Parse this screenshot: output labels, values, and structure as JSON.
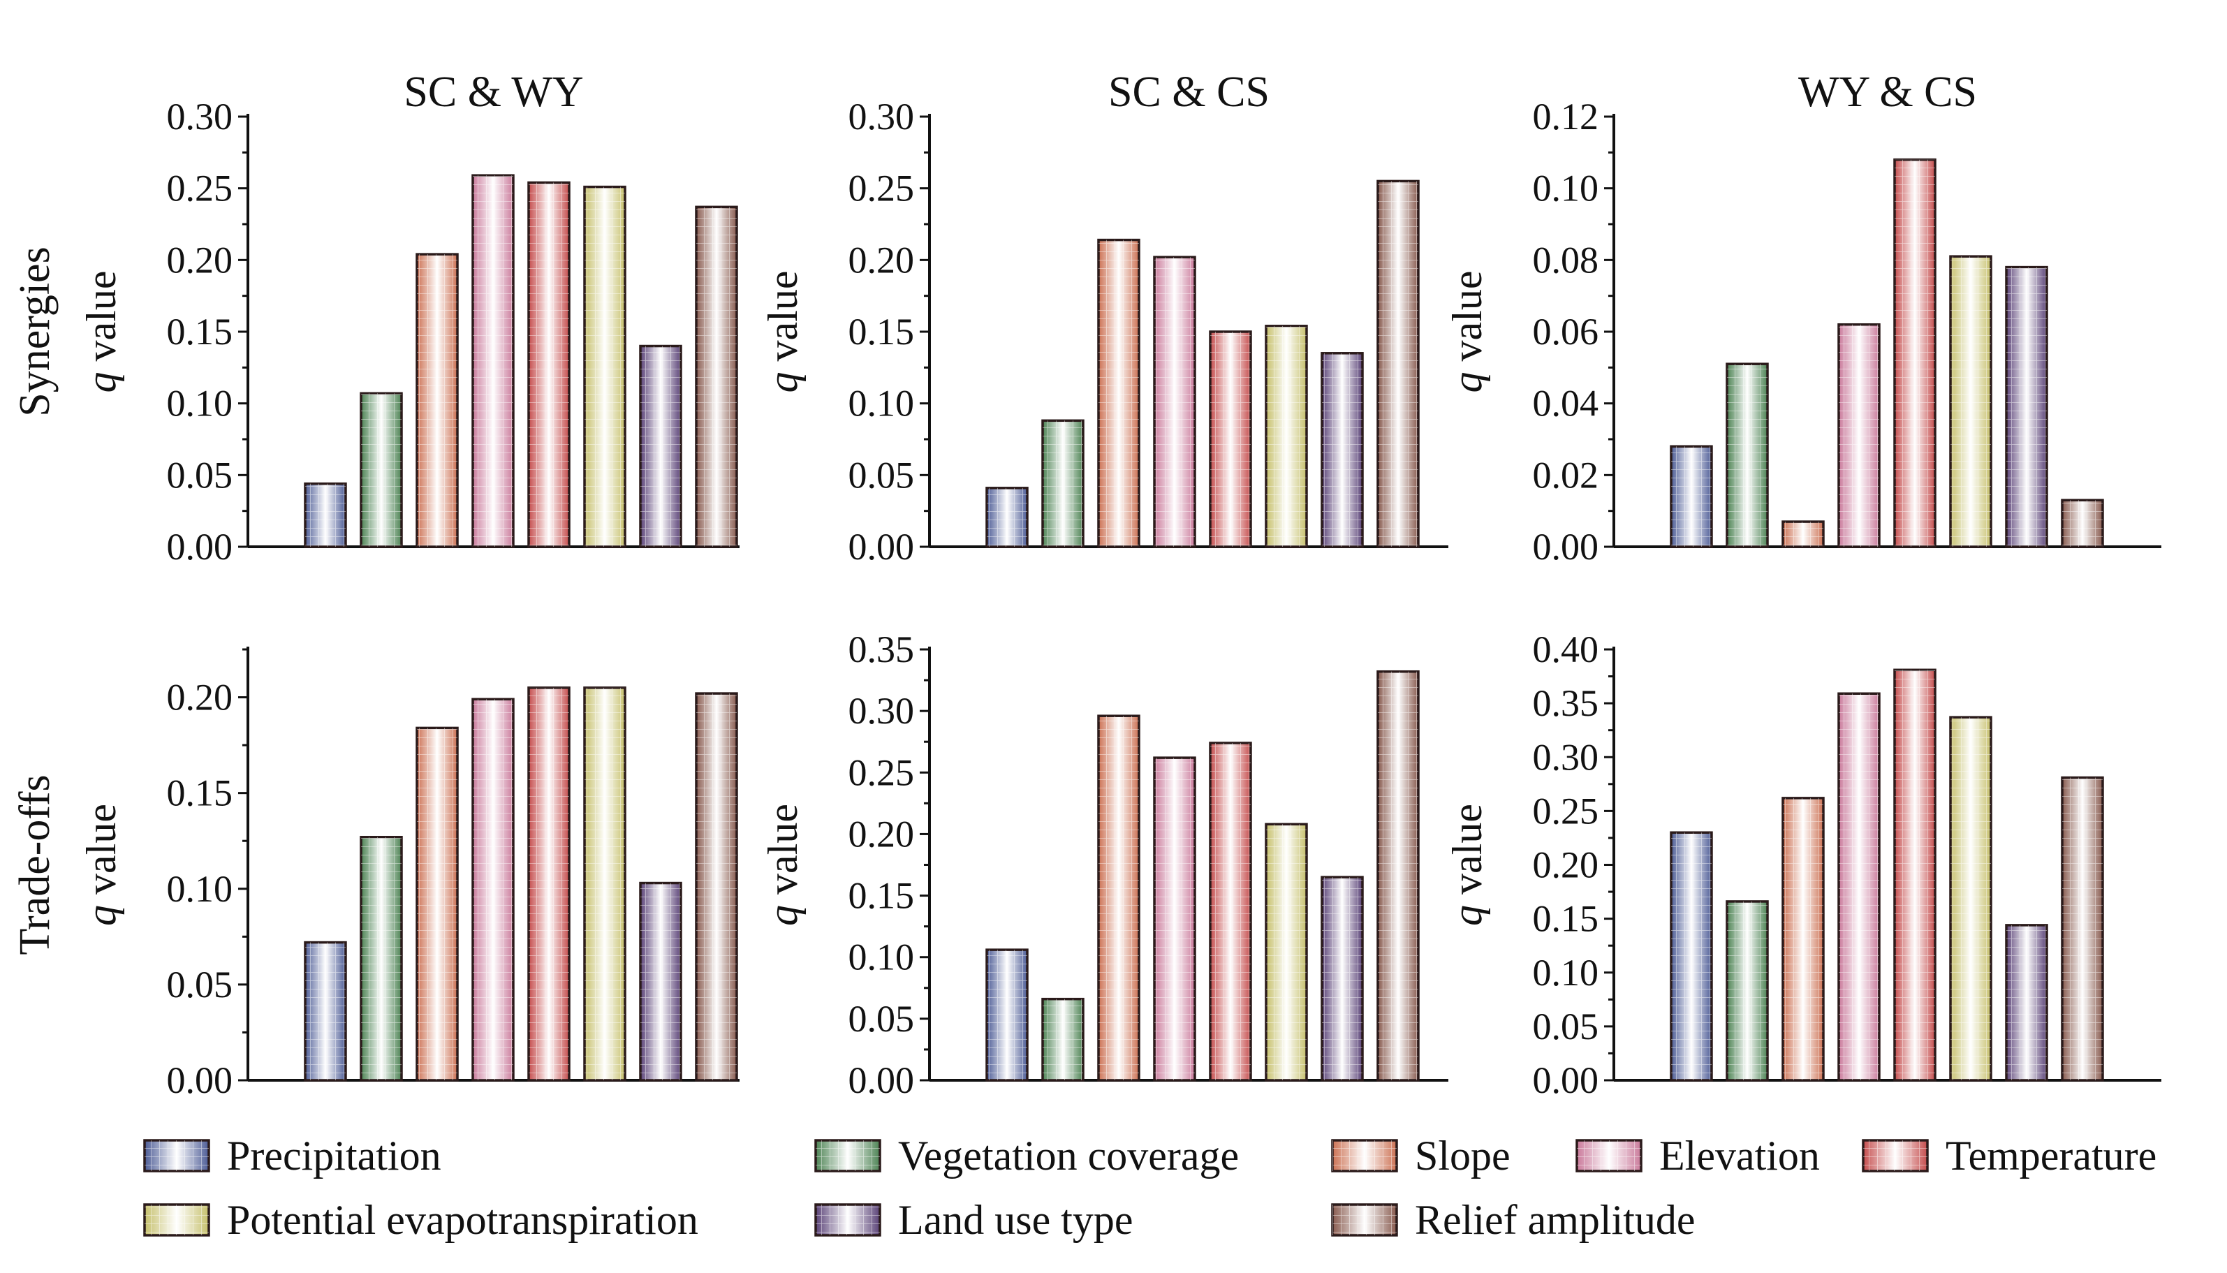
{
  "chart_data": {
    "type": "bar",
    "categories": [
      "Precipitation",
      "Vegetation coverage",
      "Slope",
      "Elevation",
      "Temperature",
      "Potential evapotranspiration",
      "Land use type",
      "Relief amplitude"
    ],
    "colors": [
      "#5b6cb0",
      "#5a9a63",
      "#f08562",
      "#ee8fb6",
      "#e85a5a",
      "#e9e27f",
      "#6a4e8c",
      "#a06a5c"
    ],
    "row_labels": [
      "Synergies",
      "Trade-offs"
    ],
    "ylabel_italic": "q",
    "ylabel_rest": " value",
    "legend": {
      "position": "bottom",
      "entries": [
        "Precipitation",
        "Vegetation coverage",
        "Slope",
        "Elevation",
        "Temperature",
        "Potential evapotranspiration",
        "Land use type",
        "Relief amplitude"
      ]
    },
    "panels": [
      {
        "row": 0,
        "col": 0,
        "title": "SC & WY",
        "ylim": [
          0,
          0.3
        ],
        "yticks": [
          "0.00",
          "0.05",
          "0.10",
          "0.15",
          "0.20",
          "0.25",
          "0.30"
        ],
        "values": [
          0.044,
          0.107,
          0.204,
          0.259,
          0.254,
          0.251,
          0.14,
          0.237
        ]
      },
      {
        "row": 0,
        "col": 1,
        "title": "SC & CS",
        "ylim": [
          0,
          0.3
        ],
        "yticks": [
          "0.00",
          "0.05",
          "0.10",
          "0.15",
          "0.20",
          "0.25",
          "0.30"
        ],
        "values": [
          0.041,
          0.088,
          0.214,
          0.202,
          0.15,
          0.154,
          0.135,
          0.255
        ]
      },
      {
        "row": 0,
        "col": 2,
        "title": "WY & CS",
        "ylim": [
          0,
          0.12
        ],
        "yticks": [
          "0.00",
          "0.02",
          "0.04",
          "0.06",
          "0.08",
          "0.10",
          "0.12"
        ],
        "values": [
          0.028,
          0.051,
          0.007,
          0.062,
          0.108,
          0.081,
          0.078,
          0.013
        ]
      },
      {
        "row": 1,
        "col": 0,
        "title": "",
        "ylim": [
          0,
          0.225
        ],
        "yticks": [
          "0.00",
          "0.05",
          "0.10",
          "0.15",
          "0.20"
        ],
        "values": [
          0.072,
          0.127,
          0.184,
          0.199,
          0.205,
          0.205,
          0.103,
          0.202
        ]
      },
      {
        "row": 1,
        "col": 1,
        "title": "",
        "ylim": [
          0,
          0.35
        ],
        "yticks": [
          "0.00",
          "0.05",
          "0.10",
          "0.15",
          "0.20",
          "0.25",
          "0.30",
          "0.35"
        ],
        "values": [
          0.106,
          0.066,
          0.296,
          0.262,
          0.274,
          0.208,
          0.165,
          0.332
        ]
      },
      {
        "row": 1,
        "col": 2,
        "title": "",
        "ylim": [
          0,
          0.4
        ],
        "yticks": [
          "0.00",
          "0.05",
          "0.10",
          "0.15",
          "0.20",
          "0.25",
          "0.30",
          "0.35",
          "0.40"
        ],
        "values": [
          0.23,
          0.166,
          0.262,
          0.359,
          0.381,
          0.337,
          0.144,
          0.281
        ]
      }
    ]
  }
}
